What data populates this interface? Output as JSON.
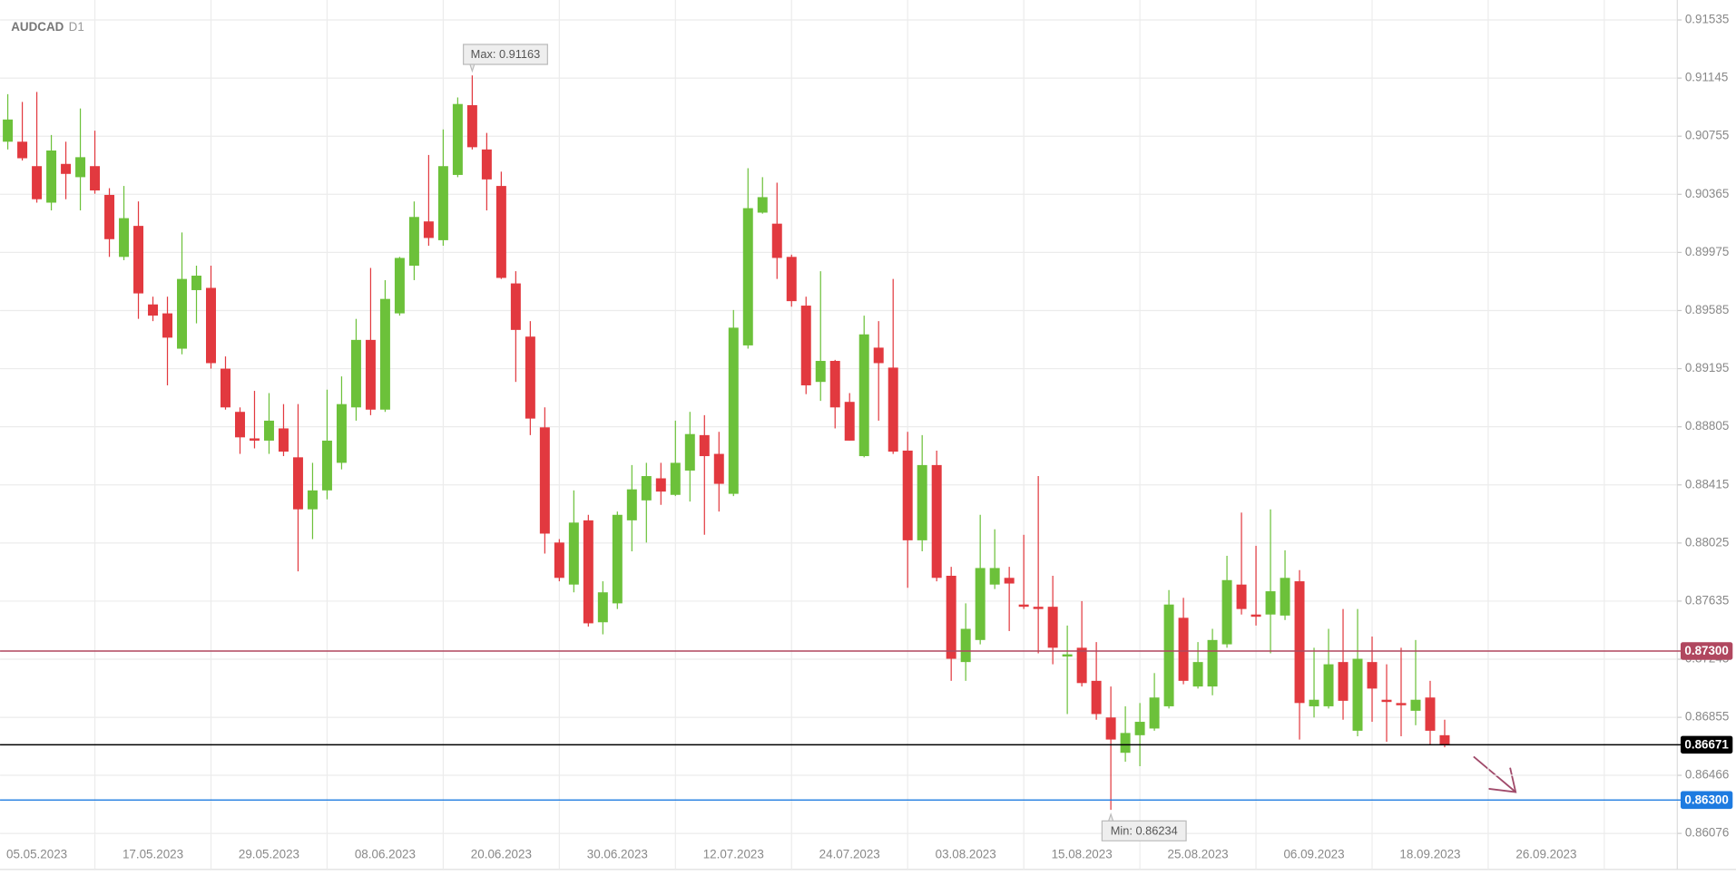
{
  "chart_data": {
    "type": "candlestick",
    "title": "AUDCAD",
    "subtitle": "D1",
    "up_color": "#6cc13a",
    "down_color": "#e2393f",
    "grid": true,
    "categories": [
      null,
      null,
      "05.05.2023",
      null,
      null,
      null,
      null,
      null,
      null,
      null,
      "17.05.2023",
      null,
      null,
      null,
      null,
      null,
      null,
      null,
      "29.05.2023",
      null,
      null,
      null,
      null,
      null,
      null,
      null,
      "08.06.2023",
      null,
      null,
      null,
      null,
      null,
      null,
      null,
      "20.06.2023",
      null,
      null,
      null,
      null,
      null,
      null,
      null,
      "30.06.2023",
      null,
      null,
      null,
      null,
      null,
      null,
      null,
      "12.07.2023",
      null,
      null,
      null,
      null,
      null,
      null,
      null,
      "24.07.2023",
      null,
      null,
      null,
      null,
      null,
      null,
      null,
      "03.08.2023",
      null,
      null,
      null,
      null,
      null,
      null,
      null,
      "15.08.2023",
      null,
      null,
      null,
      null,
      null,
      null,
      null,
      "25.08.2023",
      null,
      null,
      null,
      null,
      null,
      null,
      null,
      "06.09.2023",
      null,
      null,
      null,
      null,
      null,
      null,
      null,
      "18.09.2023",
      null,
      null,
      null,
      null,
      null,
      null,
      null,
      "26.09.2023"
    ],
    "open": [
      0.90718,
      0.90718,
      0.90554,
      0.90309,
      0.90569,
      0.9048,
      0.90554,
      0.90361,
      0.89945,
      0.90153,
      0.89626,
      0.89566,
      0.89329,
      0.89722,
      0.89737,
      0.89195,
      0.88905,
      0.88727,
      0.88712,
      0.88794,
      0.886,
      0.88251,
      0.88378,
      0.88563,
      0.88935,
      0.89388,
      0.8892,
      0.89566,
      0.89886,
      0.90183,
      0.90057,
      0.90495,
      0.90963,
      0.90666,
      0.90421,
      0.89767,
      0.8941,
      0.88801,
      0.88028,
      0.87746,
      0.88177,
      0.87493,
      0.8762,
      0.88177,
      0.88311,
      0.88459,
      0.88348,
      0.88511,
      0.88749,
      0.88623,
      0.88355,
      0.89351,
      0.90242,
      0.90168,
      0.89945,
      0.89618,
      0.89106,
      0.89247,
      0.88972,
      0.88608,
      0.89336,
      0.89202,
      0.88645,
      0.88043,
      0.88548,
      0.87805,
      0.87226,
      0.87374,
      0.87746,
      0.87791,
      0.87612,
      0.87597,
      0.87597,
      0.87263,
      0.87322,
      0.871,
      0.86854,
      0.86617,
      0.86735,
      0.8678,
      0.86929,
      0.87523,
      0.87062,
      0.87062,
      0.87345,
      0.87746,
      0.87545,
      0.87545,
      0.87538,
      0.87768,
      0.86929,
      0.86929,
      0.87226,
      0.86765,
      0.87226,
      0.86973,
      0.86951,
      0.86899,
      0.86988,
      0.86735,
      null,
      null,
      null,
      null,
      null,
      null,
      null
    ],
    "high": [
      0.91037,
      0.90985,
      0.91052,
      0.90763,
      0.90718,
      0.90941,
      0.90792,
      0.90406,
      0.90421,
      0.90317,
      0.89678,
      0.89678,
      0.90109,
      0.89886,
      0.89886,
      0.89277,
      0.88935,
      0.89046,
      0.89031,
      0.88957,
      0.88957,
      0.88563,
      0.89054,
      0.89143,
      0.89529,
      0.89871,
      0.89789,
      0.89945,
      0.90317,
      0.90629,
      0.908,
      0.91015,
      0.91163,
      0.90777,
      0.90517,
      0.89849,
      0.89514,
      0.88935,
      0.88051,
      0.88378,
      0.88214,
      0.87768,
      0.88236,
      0.88548,
      0.88563,
      0.88563,
      0.88846,
      0.88905,
      0.88883,
      0.88771,
      0.89589,
      0.9054,
      0.9048,
      0.90443,
      0.8996,
      0.89678,
      0.89849,
      0.89254,
      0.89031,
      0.89551,
      0.89514,
      0.89797,
      0.88771,
      0.88749,
      0.88645,
      0.87865,
      0.8762,
      0.88214,
      0.88117,
      0.87865,
      0.8808,
      0.88474,
      0.87805,
      0.87471,
      0.87635,
      0.8736,
      0.87062,
      0.86929,
      0.86951,
      0.87152,
      0.87709,
      0.87657,
      0.8736,
      0.87449,
      0.87939,
      0.88229,
      0.88006,
      0.88251,
      0.87976,
      0.87843,
      0.87322,
      0.87449,
      0.87582,
      0.87582,
      0.87397,
      0.87211,
      0.87322,
      0.87374,
      0.871,
      0.86839,
      null,
      null,
      null,
      null,
      null,
      null,
      null
    ],
    "low": [
      0.90666,
      0.90592,
      0.90309,
      0.90257,
      0.90332,
      0.90257,
      0.90369,
      0.89945,
      0.89923,
      0.89529,
      0.89514,
      0.89083,
      0.89291,
      0.89499,
      0.89195,
      0.8892,
      0.88623,
      0.8866,
      0.88623,
      0.88608,
      0.87835,
      0.88051,
      0.88318,
      0.88519,
      0.88846,
      0.88883,
      0.88905,
      0.89551,
      0.89789,
      0.9002,
      0.9002,
      0.9048,
      0.90666,
      0.90257,
      0.89797,
      0.89106,
      0.88749,
      0.87954,
      0.87768,
      0.87694,
      0.87464,
      0.87412,
      0.87582,
      0.87969,
      0.88028,
      0.88281,
      0.8834,
      0.88303,
      0.8808,
      0.88236,
      0.8834,
      0.89329,
      0.90235,
      0.89797,
      0.89611,
      0.89024,
      0.88979,
      0.88794,
      0.88712,
      0.886,
      0.88846,
      0.88623,
      0.87724,
      0.87969,
      0.87768,
      0.871,
      0.871,
      0.87345,
      0.87716,
      0.87434,
      0.87582,
      0.87285,
      0.87211,
      0.86877,
      0.87062,
      0.86839,
      0.86234,
      0.86557,
      0.86527,
      0.86765,
      0.86914,
      0.87077,
      0.87048,
      0.87003,
      0.87322,
      0.87545,
      0.87471,
      0.87285,
      0.87508,
      0.86706,
      0.86854,
      0.86914,
      0.86839,
      0.86728,
      0.86825,
      0.86691,
      0.86728,
      0.86802,
      0.86669,
      0.86654,
      null,
      null,
      null,
      null,
      null,
      null,
      null
    ],
    "close": [
      0.90867,
      0.90607,
      0.90332,
      0.90659,
      0.90502,
      0.90614,
      0.90391,
      0.90064,
      0.90205,
      0.897,
      0.89551,
      0.89403,
      0.89797,
      0.89819,
      0.89232,
      0.88935,
      0.88734,
      0.88712,
      0.88846,
      0.88638,
      0.88251,
      0.88378,
      0.88712,
      0.88957,
      0.89388,
      0.8892,
      0.89663,
      0.89938,
      0.90213,
      0.90072,
      0.90554,
      0.90971,
      0.90681,
      0.90465,
      0.89804,
      0.89455,
      0.8886,
      0.88088,
      0.87791,
      0.88162,
      0.87486,
      0.87694,
      0.88214,
      0.88385,
      0.88474,
      0.8837,
      0.88563,
      0.88756,
      0.88608,
      0.88422,
      0.8947,
      0.90272,
      0.90346,
      0.89938,
      0.89648,
      0.89083,
      0.89247,
      0.88935,
      0.88712,
      0.89425,
      0.89232,
      0.88638,
      0.88043,
      0.88548,
      0.87791,
      0.87248,
      0.87449,
      0.87857,
      0.87857,
      0.87753,
      0.87597,
      0.87582,
      0.87322,
      0.87278,
      0.87085,
      0.86877,
      0.86706,
      0.8675,
      0.86825,
      0.86988,
      0.87612,
      0.871,
      0.87226,
      0.87374,
      0.87776,
      0.87582,
      0.8753,
      0.87701,
      0.87791,
      0.86951,
      0.86973,
      0.87211,
      0.86966,
      0.87248,
      0.87048,
      0.86958,
      0.86936,
      0.86973,
      0.86765,
      0.86671,
      null,
      null,
      null,
      null,
      null,
      null,
      null
    ],
    "ylim": [
      0.85834,
      0.91669
    ],
    "yticks": [
      0.91535,
      0.91145,
      0.90755,
      0.90365,
      0.89975,
      0.89585,
      0.89195,
      0.88805,
      0.88415,
      0.88025,
      0.87635,
      0.87245,
      0.86855,
      0.86466,
      0.86076
    ],
    "levels": [
      {
        "value": 0.873,
        "label": "0.87300",
        "color": "#b0475f"
      },
      {
        "value": 0.86671,
        "color": "#000000"
      },
      {
        "value": 0.863,
        "label": "0.86300",
        "color": "#1e7be0"
      }
    ],
    "annotations": [
      "Max: 0.91163",
      "Min: 0.86234"
    ]
  }
}
